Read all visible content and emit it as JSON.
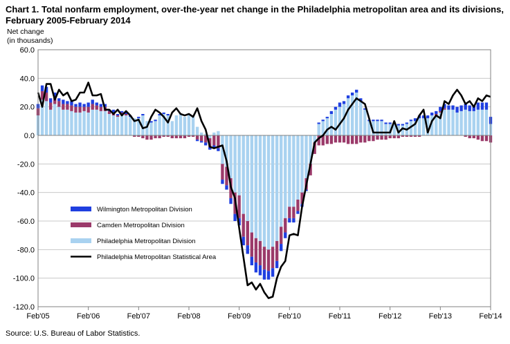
{
  "title": "Chart 1. Total nonfarm employment, over-the-year net change in the Philadelphia metropolitan area and its divisions, February 2005-February 2014",
  "ylabel_line1": "Net change",
  "ylabel_line2": "(in thousands)",
  "source": "Source: U.S. Bureau of Labor Statistics.",
  "colors": {
    "wilmington": "#1f3fe0",
    "camden": "#9b3a6a",
    "philadelphia": "#a9d2f0",
    "msa": "#000000",
    "axis": "#808080",
    "grid": "#c8c8c8"
  },
  "chart_data": {
    "type": "bar",
    "title": "Chart 1. Total nonfarm employment, over-the-year net change in the Philadelphia metropolitan area and its divisions, February 2005-February 2014",
    "ylabel": "Net change (in thousands)",
    "xlabel": "",
    "ylim": [
      -120,
      60
    ],
    "yticks": [
      "60.0",
      "40.0",
      "20.0",
      "0.0",
      "-20.0",
      "-40.0",
      "-60.0",
      "-80.0",
      "-100.0",
      "-120.0"
    ],
    "xtick_labels": [
      "Feb'05",
      "Feb'06",
      "Feb'07",
      "Feb'08",
      "Feb'09",
      "Feb'10",
      "Feb'11",
      "Feb'12",
      "Feb'13",
      "Feb'14"
    ],
    "grid": true,
    "legend_position": "lower-left",
    "stacked": true,
    "months": 109,
    "series": [
      {
        "name": "Wilmington Metropolitan Division",
        "type": "bar",
        "values": [
          3,
          4,
          4,
          3,
          3,
          2,
          3,
          2,
          3,
          2,
          3,
          2,
          3,
          3,
          2,
          2,
          2,
          1,
          2,
          1,
          1,
          1,
          1,
          0,
          1,
          1,
          0,
          1,
          1,
          1,
          1,
          1,
          0,
          0,
          0,
          0,
          0,
          0,
          -1,
          -1,
          -2,
          -2,
          -2,
          -2,
          -3,
          -3,
          -4,
          -5,
          -5,
          -6,
          -6,
          -6,
          -7,
          -7,
          -7,
          -6,
          -6,
          -5,
          -5,
          -4,
          -3,
          -3,
          -2,
          -2,
          -1,
          0,
          0,
          1,
          1,
          1,
          2,
          2,
          3,
          2,
          2,
          2,
          2,
          2,
          1,
          1,
          1,
          1,
          1,
          1,
          1,
          1,
          1,
          1,
          1,
          1,
          2,
          2,
          2,
          2,
          2,
          2,
          3,
          3,
          3,
          3,
          4,
          4,
          4,
          4,
          4,
          5,
          5,
          5,
          5
        ]
      },
      {
        "name": "Camden Metropolitan Division",
        "type": "bar",
        "values": [
          5,
          6,
          6,
          5,
          5,
          4,
          4,
          4,
          4,
          4,
          4,
          3,
          4,
          4,
          3,
          3,
          3,
          2,
          2,
          1,
          1,
          1,
          0,
          -1,
          -1,
          -2,
          -3,
          -3,
          -2,
          -2,
          -1,
          -1,
          -2,
          -2,
          -2,
          -2,
          -1,
          -1,
          -3,
          -4,
          -5,
          -6,
          -7,
          -9,
          -11,
          -13,
          -14,
          -15,
          -16,
          -16,
          -17,
          -17,
          -17,
          -17,
          -16,
          -15,
          -15,
          -14,
          -12,
          -10,
          -8,
          -8,
          -8,
          -8,
          -8,
          -8,
          -8,
          -7,
          -7,
          -6,
          -6,
          -5,
          -5,
          -5,
          -6,
          -6,
          -6,
          -5,
          -5,
          -4,
          -4,
          -3,
          -3,
          -3,
          -2,
          -2,
          -2,
          -1,
          -1,
          -1,
          -1,
          -1,
          0,
          0,
          0,
          1,
          1,
          1,
          0,
          0,
          0,
          0,
          -1,
          -2,
          -2,
          -3,
          -4,
          -4,
          -5
        ]
      },
      {
        "name": "Philadelphia Metropolitan Division",
        "type": "bar",
        "values": [
          14,
          25,
          24,
          18,
          22,
          20,
          18,
          18,
          17,
          16,
          16,
          17,
          16,
          18,
          18,
          17,
          17,
          15,
          14,
          13,
          15,
          14,
          13,
          12,
          12,
          14,
          10,
          9,
          10,
          14,
          15,
          14,
          10,
          14,
          15,
          13,
          15,
          13,
          6,
          2,
          1,
          -2,
          2,
          3,
          -20,
          -22,
          -30,
          -40,
          -42,
          -55,
          -60,
          -68,
          -72,
          -74,
          -78,
          -80,
          -78,
          -74,
          -64,
          -58,
          -50,
          -50,
          -45,
          -40,
          -30,
          -20,
          -5,
          8,
          10,
          12,
          15,
          18,
          20,
          22,
          26,
          28,
          30,
          24,
          18,
          10,
          10,
          10,
          10,
          8,
          8,
          8,
          7,
          7,
          8,
          10,
          10,
          12,
          12,
          12,
          14,
          14,
          16,
          18,
          18,
          18,
          16,
          17,
          18,
          17,
          17,
          18,
          18,
          18,
          8
        ]
      },
      {
        "name": "Philadelphia Metropolitan Statistical Area",
        "type": "line",
        "values": [
          30,
          20,
          36,
          36,
          25,
          32,
          28,
          30,
          24,
          25,
          30,
          30,
          37,
          28,
          28,
          29,
          18,
          18,
          15,
          18,
          14,
          17,
          14,
          10,
          11,
          5,
          6,
          13,
          18,
          16,
          13,
          9,
          16,
          19,
          15,
          14,
          15,
          13,
          19,
          10,
          4,
          -8,
          -9,
          -8,
          -7,
          -18,
          -36,
          -44,
          -65,
          -85,
          -105,
          -103,
          -108,
          -104,
          -110,
          -114,
          -113,
          -100,
          -92,
          -88,
          -70,
          -69,
          -70,
          -50,
          -35,
          -20,
          -5,
          -2,
          0,
          4,
          6,
          4,
          8,
          12,
          18,
          22,
          26,
          24,
          22,
          12,
          2,
          2,
          2,
          2,
          2,
          10,
          2,
          5,
          4,
          6,
          8,
          14,
          18,
          2,
          10,
          14,
          12,
          24,
          22,
          28,
          32,
          28,
          22,
          24,
          20,
          26,
          24,
          28,
          27
        ]
      }
    ]
  },
  "legend": [
    {
      "key": "wilmington",
      "label": "Wilmington Metropolitan Division",
      "kind": "bar"
    },
    {
      "key": "camden",
      "label": "Camden Metropolitan Division",
      "kind": "bar"
    },
    {
      "key": "philadelphia",
      "label": "Philadelphia Metropolitan Division",
      "kind": "bar"
    },
    {
      "key": "msa",
      "label": "Philadelphia Metropolitan Statistical Area",
      "kind": "line"
    }
  ]
}
